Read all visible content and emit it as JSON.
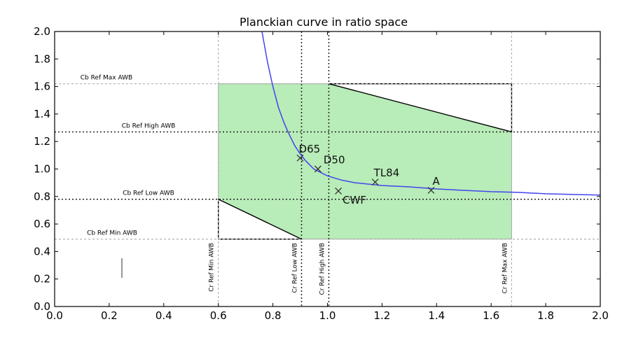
{
  "chart_data": {
    "type": "line",
    "title": "Planckian curve in ratio space",
    "xlabel": "",
    "ylabel": "",
    "xlim": [
      0.0,
      2.0
    ],
    "ylim": [
      0.0,
      2.0
    ],
    "xticks": [
      "0.0",
      "0.2",
      "0.4",
      "0.6",
      "0.8",
      "1.0",
      "1.2",
      "1.4",
      "1.6",
      "1.8",
      "2.0"
    ],
    "yticks": [
      "0.0",
      "0.2",
      "0.4",
      "0.6",
      "0.8",
      "1.0",
      "1.2",
      "1.4",
      "1.6",
      "1.8",
      "2.0"
    ],
    "grid": false,
    "colors": {
      "curve": "#4444ee",
      "region_fill": "#b8ecb8",
      "region_edge": "#999999"
    },
    "planckian_curve": {
      "x": [
        0.76,
        0.78,
        0.8,
        0.82,
        0.84,
        0.86,
        0.88,
        0.9,
        0.92,
        0.95,
        1.0,
        1.05,
        1.1,
        1.2,
        1.3,
        1.4,
        1.5,
        1.6,
        1.7,
        1.8,
        1.9,
        2.0
      ],
      "y": [
        2.0,
        1.78,
        1.6,
        1.45,
        1.34,
        1.25,
        1.17,
        1.11,
        1.06,
        1.0,
        0.95,
        0.92,
        0.9,
        0.88,
        0.87,
        0.855,
        0.845,
        0.835,
        0.83,
        0.82,
        0.815,
        0.81
      ]
    },
    "illuminants": [
      {
        "name": "D65",
        "x": 0.9,
        "y": 1.08
      },
      {
        "name": "D50",
        "x": 0.965,
        "y": 1.0
      },
      {
        "name": "TL84",
        "x": 1.175,
        "y": 0.905
      },
      {
        "name": "CWF",
        "x": 1.04,
        "y": 0.84
      },
      {
        "name": "A",
        "x": 1.38,
        "y": 0.845
      }
    ],
    "reference_lines": {
      "cb": [
        {
          "label": "Cb Ref Max AWB",
          "y": 1.62,
          "style": "light"
        },
        {
          "label": "Cb Ref High AWB",
          "y": 1.27,
          "style": "dark"
        },
        {
          "label": "Cb Ref Low AWB",
          "y": 0.78,
          "style": "dark"
        },
        {
          "label": "Cb Ref Min AWB",
          "y": 0.49,
          "style": "light"
        }
      ],
      "cr": [
        {
          "label": "Cr Ref Min AWB",
          "x": 0.6,
          "style": "light"
        },
        {
          "label": "Cr Ref Low AWB",
          "x": 0.905,
          "style": "dark"
        },
        {
          "label": "Cr Ref High AWB",
          "x": 1.005,
          "style": "dark"
        },
        {
          "label": "Cr Ref Max AWB",
          "x": 1.675,
          "style": "light"
        }
      ]
    },
    "awb_region": {
      "polygon": [
        [
          0.6,
          0.78
        ],
        [
          0.905,
          0.49
        ],
        [
          1.675,
          0.49
        ],
        [
          1.675,
          1.27
        ],
        [
          1.005,
          1.62
        ],
        [
          0.6,
          1.62
        ]
      ]
    },
    "excluded_triangles": [
      [
        [
          1.005,
          1.62
        ],
        [
          1.675,
          1.62
        ],
        [
          1.675,
          1.27
        ]
      ],
      [
        [
          0.6,
          0.78
        ],
        [
          0.6,
          0.49
        ],
        [
          0.905,
          0.49
        ]
      ]
    ]
  }
}
